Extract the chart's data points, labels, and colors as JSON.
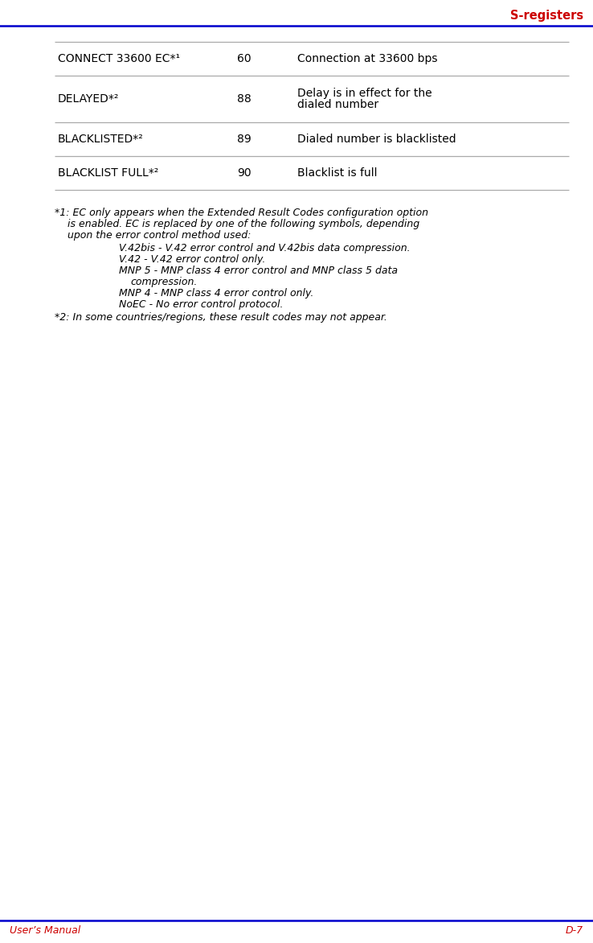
{
  "title_right": "S-registers",
  "footer_left": "User’s Manual",
  "footer_right": "D-7",
  "header_line_color": "#0000CC",
  "footer_line_color": "#0000CC",
  "title_color": "#CC0000",
  "footer_color": "#CC0000",
  "bg_color": "#FFFFFF",
  "table_rows": [
    {
      "col1": "CONNECT 33600 EC*¹",
      "col2": "60",
      "col3": "Connection at 33600 bps"
    },
    {
      "col1": "DELAYED*²",
      "col2": "88",
      "col3": "Delay is in effect for the\ndialed number"
    },
    {
      "col1": "BLACKLISTED*²",
      "col2": "89",
      "col3": "Dialed number is blacklisted"
    },
    {
      "col1": "BLACKLIST FULL*²",
      "col2": "90",
      "col3": "Blacklist is full"
    }
  ],
  "table_line_color": "#AAAAAA",
  "note1_para1": "*1: EC only appears when the Extended Result Codes configuration option\n    is enabled. EC is replaced by one of the following symbols, depending\n    upon the error control method used:",
  "note1_indented": [
    "V.42bis - V.42 error control and V.42bis data compression.",
    "V.42 - V.42 error control only.",
    "MNP 5 - MNP class 4 error control and MNP class 5 data\n           compression.",
    "MNP 4 - MNP class 4 error control only.",
    "NoEC - No error control protocol."
  ],
  "note2_line": "*2: In some countries/regions, these result codes may not appear.",
  "note_fontsize": 9.0,
  "table_fontsize": 10.0,
  "title_fontsize": 10.5,
  "footer_fontsize": 9.0,
  "fig_width": 7.38,
  "fig_height": 11.72,
  "dpi": 100
}
